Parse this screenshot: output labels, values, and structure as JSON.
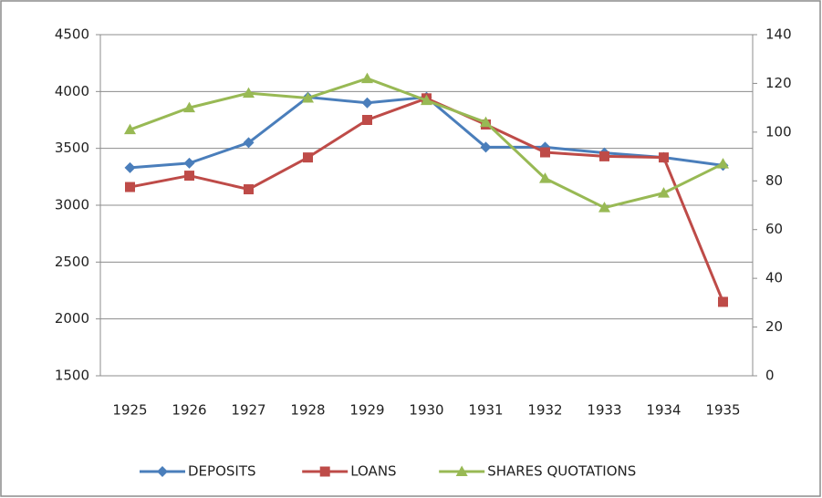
{
  "chart_data": {
    "type": "line",
    "categories": [
      "1925",
      "1926",
      "1927",
      "1928",
      "1929",
      "1930",
      "1931",
      "1932",
      "1933",
      "1934",
      "1935"
    ],
    "series": [
      {
        "name": "DEPOSITS",
        "color": "#4a7ebb",
        "marker": "diamond",
        "values": [
          3330,
          3370,
          3550,
          3950,
          3900,
          3950,
          3510,
          3510,
          3460,
          3420,
          3350
        ]
      },
      {
        "name": "LOANS",
        "color": "#be4b48",
        "marker": "square",
        "values": [
          3160,
          3260,
          3140,
          3420,
          3750,
          3940,
          3710,
          3465,
          3430,
          3420,
          2150
        ]
      },
      {
        "name": "SHARES QUOTATIONS",
        "color": "#98b954",
        "marker": "triangle",
        "axis": "y2",
        "values": [
          101,
          110,
          116,
          114,
          122,
          113,
          104,
          81,
          69,
          75,
          87
        ]
      }
    ],
    "ylim": [
      1500,
      4500
    ],
    "yticks": [
      1500,
      2000,
      2500,
      3000,
      3500,
      4000,
      4500
    ],
    "y2lim": [
      0,
      140
    ],
    "y2ticks": [
      0,
      20,
      40,
      60,
      80,
      100,
      120,
      140
    ],
    "grid": true,
    "legend": "bottom"
  }
}
